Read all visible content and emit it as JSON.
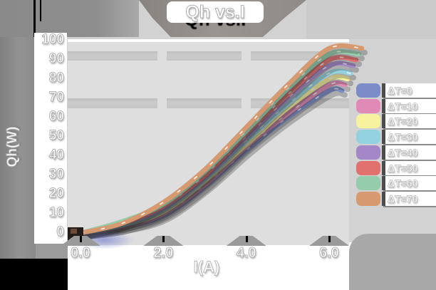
{
  "title": "Qh vs.I",
  "chart_data": {
    "type": "line",
    "title": "Qh vs.I",
    "xlabel": "I(A)",
    "ylabel": "Qh(W)",
    "xlim": [
      0,
      6.8
    ],
    "ylim": [
      0,
      100
    ],
    "grid": "horizontal-bands",
    "legend_position": "right",
    "x": [
      0,
      1,
      2,
      3,
      4,
      5,
      6
    ],
    "x_ticks": [
      "0.0",
      "2.0",
      "4.0",
      "6.0"
    ],
    "x_tick_values": [
      0,
      2,
      4,
      6
    ],
    "y_ticks": [
      "100",
      "90",
      "80",
      "70",
      "60",
      "50",
      "40",
      "30",
      "20",
      "10",
      "0"
    ],
    "y_tick_values": [
      100,
      90,
      80,
      70,
      60,
      50,
      40,
      30,
      20,
      10,
      0
    ],
    "series": [
      {
        "name": "ΔT=0",
        "color": "#7b8cc8",
        "values": [
          0,
          3,
          9,
          24,
          43,
          60,
          74
        ]
      },
      {
        "name": "ΔT=10",
        "color": "#e28ab6",
        "values": [
          0,
          3,
          10,
          25,
          45,
          62,
          77
        ]
      },
      {
        "name": "ΔT=20",
        "color": "#f7f29d",
        "values": [
          0,
          4,
          11,
          27,
          46,
          65,
          80
        ]
      },
      {
        "name": "ΔT=30",
        "color": "#95d2e0",
        "values": [
          0,
          4,
          12,
          28,
          48,
          67,
          83
        ]
      },
      {
        "name": "ΔT=40",
        "color": "#a487c6",
        "values": [
          0,
          5,
          13,
          29,
          50,
          70,
          87
        ]
      },
      {
        "name": "ΔT=50",
        "color": "#e0716f",
        "values": [
          0,
          5,
          14,
          30,
          52,
          72,
          90
        ]
      },
      {
        "name": "ΔT=60",
        "color": "#95ccab",
        "values": [
          0,
          6,
          15,
          32,
          53,
          75,
          93
        ]
      },
      {
        "name": "ΔT=70",
        "color": "#d79a70",
        "values": [
          0,
          5,
          16,
          33,
          55,
          77,
          96
        ]
      }
    ]
  }
}
